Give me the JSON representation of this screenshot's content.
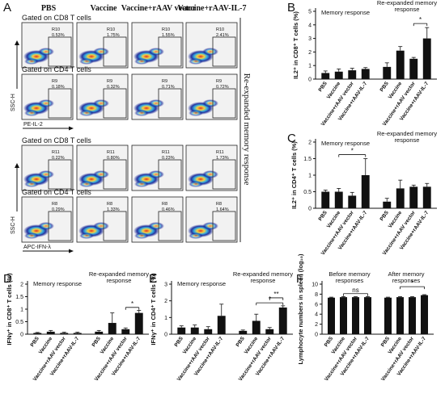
{
  "colors": {
    "bar": "#111111",
    "flow_background": "#f2f2f2",
    "flow_dense_core": "#1a2a9a",
    "flow_mid": "#2ca9e0",
    "flow_ring": "#f3d13a",
    "flow_hot": "#e2231a",
    "frame": "#222222"
  },
  "flow": {
    "panel_letter": "A",
    "columns": [
      "PBS",
      "Vaccine",
      "Vaccine+rAAV vector",
      "Vaccine+rAAV-IL-7"
    ],
    "side_label": "Re-expanded memory response",
    "y_axis_label": "SSC-H",
    "rows": [
      {
        "header": "Gated on CD8 T cells",
        "gate": "R10",
        "values": [
          "0.53%",
          "1.75%",
          "1.55%",
          "2.41%"
        ],
        "x_axis_label": ""
      },
      {
        "header": "Gated on CD4 T cells",
        "gate": "R9",
        "values": [
          "0.18%",
          "0.32%",
          "0.71%",
          "0.72%"
        ],
        "x_axis_label": "PE-IL-2"
      },
      {
        "header": "Gated on CD8 T cells",
        "gate": "R11",
        "values": [
          "0.22%",
          "0.80%",
          "0.23%",
          "1.73%"
        ],
        "x_axis_label": ""
      },
      {
        "header": "Gated on CD4 T cells",
        "gate": "R8",
        "values": [
          "0.29%",
          "1.33%",
          "0.46%",
          "1.64%"
        ],
        "x_axis_label": "APC-IFN-λ"
      }
    ]
  },
  "chart_data": [
    {
      "panel": "B",
      "type": "bar",
      "ylabel": "IL2⁺ in CD8⁺ T cells (%)",
      "ylim": [
        0,
        5
      ],
      "yticks": [
        0,
        1,
        2,
        3,
        4,
        5
      ],
      "groups": [
        {
          "name": "Memory response",
          "categories": [
            "PBS",
            "Vaccine",
            "Vaccine+rAAV vector",
            "Vaccine+rAAV-IL-7"
          ],
          "values": [
            0.45,
            0.55,
            0.65,
            0.75
          ],
          "errors": [
            0.15,
            0.2,
            0.15,
            0.1
          ]
        },
        {
          "name": "Re-expanded memory response",
          "categories": [
            "PBS",
            "Vaccine",
            "Vaccine+rAAV vector",
            "Vaccine+rAAV-IL-7"
          ],
          "values": [
            0.9,
            2.1,
            1.5,
            3.0
          ],
          "errors": [
            0.3,
            0.3,
            0.1,
            0.8
          ]
        }
      ],
      "significance": [
        {
          "group": 1,
          "from": 2,
          "to": 3,
          "label": "*"
        }
      ]
    },
    {
      "panel": "C",
      "type": "bar",
      "ylabel": "IL2⁺ in CD4⁺ T cells (%)",
      "ylim": [
        0,
        2.0
      ],
      "yticks": [
        0,
        0.5,
        1.0,
        1.5,
        2.0
      ],
      "groups": [
        {
          "name": "Memory response",
          "categories": [
            "PBS",
            "Vaccine",
            "Vaccine+rAAV vector",
            "Vaccine+rAAV-IL-7"
          ],
          "values": [
            0.5,
            0.5,
            0.38,
            1.0
          ],
          "errors": [
            0.05,
            0.1,
            0.1,
            0.5
          ]
        },
        {
          "name": "Re-expanded memory response",
          "categories": [
            "PBS",
            "Vaccine",
            "Vaccine+rAAV vector",
            "Vaccine+rAAV-IL-7"
          ],
          "values": [
            0.2,
            0.6,
            0.65,
            0.65
          ],
          "errors": [
            0.1,
            0.25,
            0.05,
            0.1
          ]
        }
      ],
      "significance": [
        {
          "group": 0,
          "from": 1,
          "to": 3,
          "label": "*"
        }
      ]
    },
    {
      "panel": "D",
      "type": "bar",
      "ylabel": "IFNγ⁺ in CD8⁺ T cells (%)",
      "ylim": [
        0,
        2.0
      ],
      "yticks": [
        0,
        0.5,
        1.0,
        1.5,
        2.0
      ],
      "groups": [
        {
          "name": "Memory response",
          "categories": [
            "PBS",
            "Vaccine",
            "Vaccine+rAAV vector",
            "Vaccine+rAAV-IL-7"
          ],
          "values": [
            0.05,
            0.1,
            0.05,
            0.05
          ],
          "errors": [
            0.02,
            0.05,
            0.03,
            0.03
          ]
        },
        {
          "name": "Re-expanded memory response",
          "categories": [
            "PBS",
            "Vaccine",
            "Vaccine+rAAV vector",
            "Vaccine+rAAV-IL-7"
          ],
          "values": [
            0.1,
            0.45,
            0.2,
            0.85
          ],
          "errors": [
            0.05,
            0.4,
            0.05,
            0.1
          ]
        }
      ],
      "significance": [
        {
          "group": 1,
          "from": 2,
          "to": 3,
          "label": "*"
        }
      ]
    },
    {
      "panel": "E",
      "type": "bar",
      "ylabel": "IFNγ⁺ in CD4⁺ T cells (%)",
      "ylim": [
        0,
        3
      ],
      "yticks": [
        0,
        1,
        2,
        3
      ],
      "groups": [
        {
          "name": "Memory response",
          "categories": [
            "PBS",
            "Vaccine",
            "Vaccine+rAAV vector",
            "Vaccine+rAAV-IL-7"
          ],
          "values": [
            0.4,
            0.4,
            0.3,
            1.1
          ],
          "errors": [
            0.1,
            0.15,
            0.15,
            0.7
          ]
        },
        {
          "name": "Re-expanded memory response",
          "categories": [
            "PBS",
            "Vaccine",
            "Vaccine+rAAV vector",
            "Vaccine+rAAV-IL-7"
          ],
          "values": [
            0.2,
            0.8,
            0.3,
            1.6
          ],
          "errors": [
            0.05,
            0.4,
            0.1,
            0.1
          ]
        }
      ],
      "significance": [
        {
          "group": 1,
          "from": 1,
          "to": 3,
          "label": "*"
        },
        {
          "group": 1,
          "from": 2,
          "to": 3,
          "label": "**"
        }
      ]
    },
    {
      "panel": "F",
      "type": "bar",
      "ylabel": "Lymphocyte numbers in spleen (log₁₀)",
      "ylim": [
        0,
        10
      ],
      "yticks": [
        0,
        2,
        4,
        6,
        8,
        10
      ],
      "groups": [
        {
          "name": "Before memory responses",
          "categories": [
            "PBS",
            "Vaccine",
            "Vaccine+rAAV vector",
            "Vaccine+rAAV-IL-7"
          ],
          "values": [
            7.3,
            7.4,
            7.4,
            7.4
          ],
          "errors": [
            0.1,
            0.1,
            0.1,
            0.1
          ]
        },
        {
          "name": "After memory responses",
          "categories": [
            "PBS",
            "Vaccine",
            "Vaccine+rAAV vector",
            "Vaccine+rAAV-IL-7"
          ],
          "values": [
            7.3,
            7.4,
            7.4,
            7.8
          ],
          "errors": [
            0.1,
            0.1,
            0.1,
            0.1
          ]
        }
      ],
      "significance": [
        {
          "group": 0,
          "from": 1,
          "to": 3,
          "label": "ns"
        },
        {
          "group": 1,
          "from": 1,
          "to": 3,
          "label": "*"
        }
      ]
    }
  ]
}
